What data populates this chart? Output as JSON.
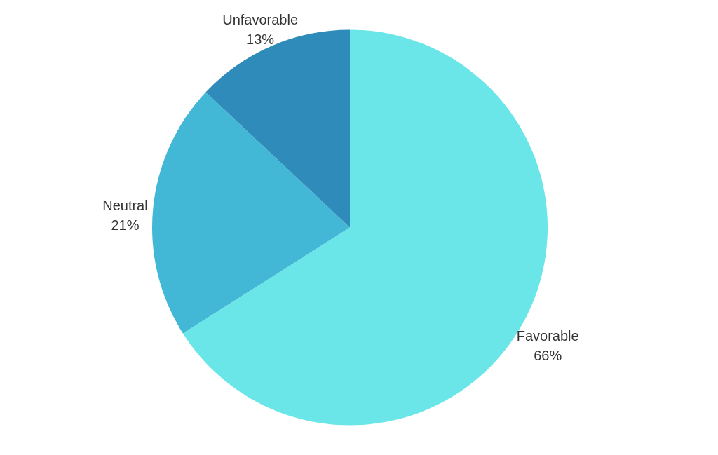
{
  "chart_data": {
    "type": "pie",
    "categories": [
      "Favorable",
      "Neutral",
      "Unfavorable"
    ],
    "values": [
      66,
      21,
      13
    ],
    "colors": [
      "#6ae5e8",
      "#42b8d6",
      "#2e8bba"
    ],
    "value_labels": [
      "66%",
      "21%",
      "13%"
    ]
  }
}
